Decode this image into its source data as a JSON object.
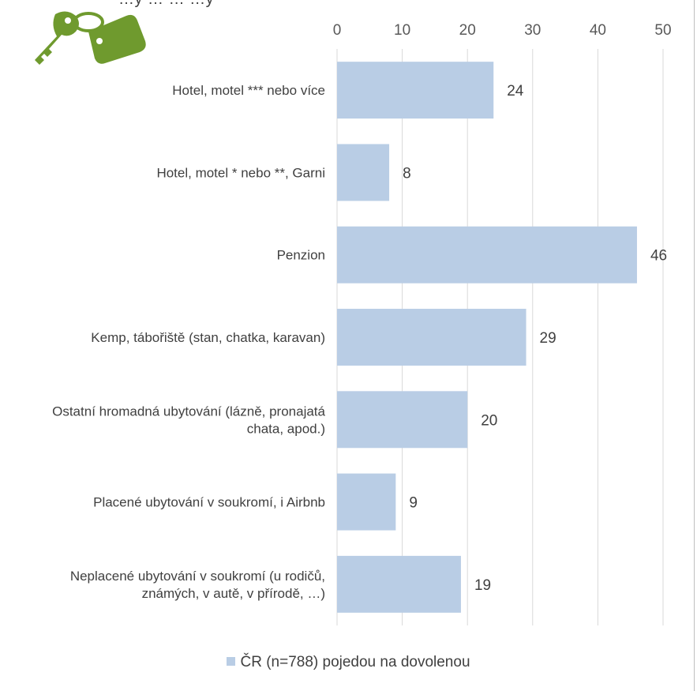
{
  "title_fragment": "…y …   …                    …y",
  "logo": {
    "name": "keys-icon",
    "color": "#6f9a2e"
  },
  "colors": {
    "bar": "#b9cde5",
    "grid": "#d9d9d9",
    "text": "#404040"
  },
  "chart_data": {
    "type": "bar",
    "orientation": "horizontal",
    "categories": [
      [
        "Hotel, motel *** nebo více"
      ],
      [
        "Hotel, motel * nebo **, Garni"
      ],
      [
        "Penzion"
      ],
      [
        "Kemp, tábořiště (stan, chatka, karavan)"
      ],
      [
        "Ostatní hromadná ubytování (lázně, pronajatá",
        "chata, apod.)"
      ],
      [
        "Placené ubytování v soukromí, i Airbnb"
      ],
      [
        "Neplacené ubytování v soukromí (u rodičů,",
        "známých, v autě, v přírodě, …)"
      ]
    ],
    "series": [
      {
        "name": "ČR (n=788) pojedou na dovolenou",
        "values": [
          24,
          8,
          46,
          29,
          20,
          9,
          19
        ]
      }
    ],
    "data_labels": [
      "24",
      "8",
      "46",
      "29",
      "20",
      "9",
      "19"
    ],
    "xlim": [
      0,
      50
    ],
    "x_ticks": [
      "0",
      "10",
      "20",
      "30",
      "40",
      "50"
    ],
    "x_axis_position": "top",
    "grid": true,
    "legend_position": "bottom"
  },
  "legend": {
    "label": "ČR (n=788) pojedou na dovolenou"
  }
}
